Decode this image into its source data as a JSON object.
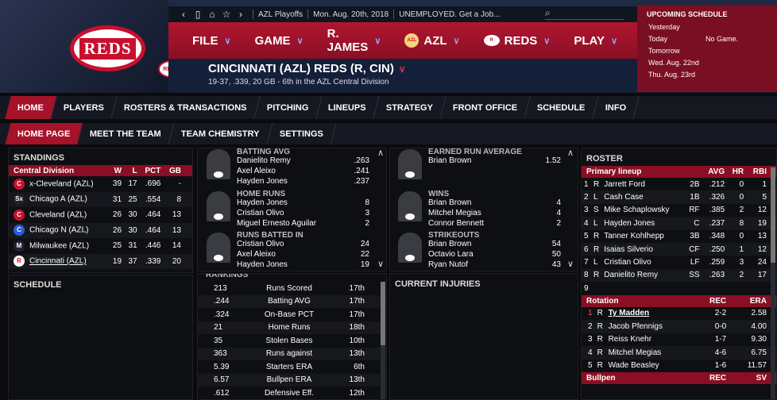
{
  "topbar": {
    "nav_icons": [
      "chevron-left-icon",
      "phone-icon",
      "home-icon",
      "star-icon",
      "chevron-right-icon"
    ],
    "league": "AZL Playoffs",
    "date": "Mon. Aug. 20th, 2018",
    "status": "UNEMPLOYED. Get a Job..."
  },
  "menu": [
    {
      "label": "FILE"
    },
    {
      "label": "GAME"
    },
    {
      "label": "R. JAMES"
    },
    {
      "label": "AZL"
    },
    {
      "label": "REDS"
    },
    {
      "label": "PLAY"
    }
  ],
  "team": {
    "name": "CINCINNATI (AZL) REDS (R, CIN)",
    "record": "19-37, .339, 20 GB - 6th in the AZL Central Division",
    "logo_text": "REDS",
    "mini_logo_text": "REDS"
  },
  "upcoming": {
    "title": "UPCOMING SCHEDULE",
    "rows": [
      {
        "day": "Yesterday",
        "info": ""
      },
      {
        "day": "Today",
        "info": "No Game."
      },
      {
        "day": "Tomorrow",
        "info": ""
      },
      {
        "day": "Wed. Aug. 22nd",
        "info": ""
      },
      {
        "day": "Thu. Aug. 23rd",
        "info": ""
      }
    ]
  },
  "nav1": [
    "HOME",
    "PLAYERS",
    "ROSTERS & TRANSACTIONS",
    "PITCHING",
    "LINEUPS",
    "STRATEGY",
    "FRONT OFFICE",
    "SCHEDULE",
    "INFO"
  ],
  "nav2": [
    "HOME PAGE",
    "MEET THE TEAM",
    "TEAM CHEMISTRY",
    "SETTINGS"
  ],
  "standings": {
    "title": "STANDINGS",
    "division": "Central Division",
    "cols": [
      "W",
      "L",
      "PCT",
      "GB"
    ],
    "rows": [
      {
        "team": "x-Cleveland (AZL)",
        "w": "39",
        "l": "17",
        "pct": ".696",
        "gb": "-",
        "color": "#c8102e",
        "mark": "C"
      },
      {
        "team": "Chicago A (AZL)",
        "w": "31",
        "l": "25",
        "pct": ".554",
        "gb": "8",
        "color": "#222",
        "mark": "Sx"
      },
      {
        "team": "Cleveland (AZL)",
        "w": "26",
        "l": "30",
        "pct": ".464",
        "gb": "13",
        "color": "#c8102e",
        "mark": "C"
      },
      {
        "team": "Chicago N (AZL)",
        "w": "26",
        "l": "30",
        "pct": ".464",
        "gb": "13",
        "color": "#2a5bd7",
        "mark": "C"
      },
      {
        "team": "Milwaukee (AZL)",
        "w": "25",
        "l": "31",
        "pct": ".446",
        "gb": "14",
        "color": "#223",
        "mark": "M"
      },
      {
        "team": "Cincinnati (AZL)",
        "w": "19",
        "l": "37",
        "pct": ".339",
        "gb": "20",
        "color": "#fff",
        "mark": "R"
      }
    ]
  },
  "schedule": {
    "title": "SCHEDULE"
  },
  "leaders_bat": [
    {
      "title": "BATTING AVG",
      "rows": [
        [
          "Danielito Remy",
          ".263"
        ],
        [
          "Axel Aleixo",
          ".241"
        ],
        [
          "Hayden Jones",
          ".237"
        ]
      ]
    },
    {
      "title": "HOME RUNS",
      "rows": [
        [
          "Hayden Jones",
          "8"
        ],
        [
          "Cristian Olivo",
          "3"
        ],
        [
          "Miguel Ernesto Aguilar",
          "2"
        ]
      ]
    },
    {
      "title": "RUNS BATTED IN",
      "rows": [
        [
          "Cristian Olivo",
          "24"
        ],
        [
          "Axel Aleixo",
          "22"
        ],
        [
          "Hayden Jones",
          "19"
        ]
      ]
    }
  ],
  "leaders_pitch": [
    {
      "title": "EARNED RUN AVERAGE",
      "rows": [
        [
          "Brian Brown",
          "1.52"
        ]
      ]
    },
    {
      "title": "WINS",
      "rows": [
        [
          "Brian Brown",
          "4"
        ],
        [
          "Mitchel Megias",
          "4"
        ],
        [
          "Connor Bennett",
          "2"
        ]
      ]
    },
    {
      "title": "STRIKEOUTS",
      "rows": [
        [
          "Brian Brown",
          "54"
        ],
        [
          "Octavio Lara",
          "50"
        ],
        [
          "Ryan Nutof",
          "43"
        ]
      ]
    }
  ],
  "rankings": {
    "title": "RANKINGS",
    "rows": [
      [
        "213",
        "Runs Scored",
        "17th"
      ],
      [
        ".244",
        "Batting AVG",
        "17th"
      ],
      [
        ".324",
        "On-Base PCT",
        "17th"
      ],
      [
        "21",
        "Home Runs",
        "18th"
      ],
      [
        "35",
        "Stolen Bases",
        "10th"
      ],
      [
        "363",
        "Runs against",
        "13th"
      ],
      [
        "5.39",
        "Starters ERA",
        "6th"
      ],
      [
        "6.57",
        "Bullpen ERA",
        "13th"
      ],
      [
        ".612",
        "Defensive Eff.",
        "12th"
      ]
    ]
  },
  "injuries": {
    "title": "CURRENT INJURIES"
  },
  "roster": {
    "title": "ROSTER",
    "lineup_header": "Primary lineup",
    "lineup_cols": [
      "AVG",
      "HR",
      "RBI"
    ],
    "lineup": [
      [
        "1",
        "R",
        "Jarrett Ford",
        "2B",
        ".212",
        "0",
        "1"
      ],
      [
        "2",
        "L",
        "Cash Case",
        "1B",
        ".326",
        "0",
        "5"
      ],
      [
        "3",
        "S",
        "Mike Schaplowsky",
        "RF",
        ".385",
        "2",
        "12"
      ],
      [
        "4",
        "L",
        "Hayden Jones",
        "C",
        ".237",
        "8",
        "19"
      ],
      [
        "5",
        "R",
        "Tanner Kohlhepp",
        "3B",
        ".348",
        "0",
        "13"
      ],
      [
        "6",
        "R",
        "Isaias Silverio",
        "CF",
        ".250",
        "1",
        "12"
      ],
      [
        "7",
        "L",
        "Cristian Olivo",
        "LF",
        ".259",
        "3",
        "24"
      ],
      [
        "8",
        "R",
        "Danielito Remy",
        "SS",
        ".263",
        "2",
        "17"
      ],
      [
        "9",
        "",
        "",
        "",
        "",
        "",
        ""
      ]
    ],
    "rotation_header": "Rotation",
    "rotation_cols": [
      "REC",
      "ERA"
    ],
    "rotation": [
      [
        "1",
        "R",
        "Ty Madden",
        "2-2",
        "2.58"
      ],
      [
        "2",
        "R",
        "Jacob Pfennigs",
        "0-0",
        "4.00"
      ],
      [
        "3",
        "R",
        "Reiss Knehr",
        "1-7",
        "9.30"
      ],
      [
        "4",
        "R",
        "Mitchel Megias",
        "4-6",
        "6.75"
      ],
      [
        "5",
        "R",
        "Wade Beasley",
        "1-6",
        "11.57"
      ]
    ],
    "bullpen_header": "Bullpen",
    "bullpen_cols": [
      "REC",
      "SV"
    ]
  }
}
